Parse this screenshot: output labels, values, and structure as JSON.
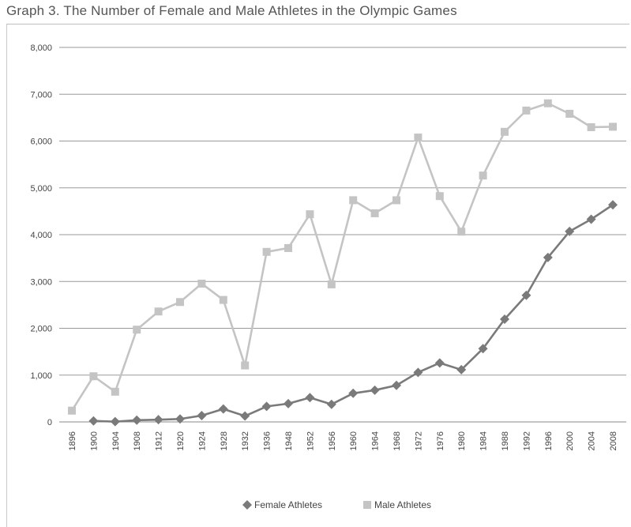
{
  "chart_data": {
    "type": "line",
    "title": "Graph 3. The Number of Female and Male Athletes in the Olympic Games",
    "xlabel": "",
    "ylabel": "",
    "ylim": [
      0,
      8000
    ],
    "y_ticks": [
      {
        "value": 0,
        "label": "0"
      },
      {
        "value": 1000,
        "label": "1,000"
      },
      {
        "value": 2000,
        "label": "2,000"
      },
      {
        "value": 3000,
        "label": "3,000"
      },
      {
        "value": 4000,
        "label": "4,000"
      },
      {
        "value": 5000,
        "label": "5,000"
      },
      {
        "value": 6000,
        "label": "6,000"
      },
      {
        "value": 7000,
        "label": "7,000"
      },
      {
        "value": 8000,
        "label": "8,000"
      }
    ],
    "grid": true,
    "legend_position": "bottom",
    "categories": [
      "1896",
      "1900",
      "1904",
      "1908",
      "1912",
      "1920",
      "1924",
      "1928",
      "1932",
      "1936",
      "1948",
      "1952",
      "1956",
      "1960",
      "1964",
      "1968",
      "1972",
      "1976",
      "1980",
      "1984",
      "1988",
      "1992",
      "1996",
      "2000",
      "2004",
      "2008"
    ],
    "series": [
      {
        "name": "Female Athletes",
        "marker": "diamond",
        "color": "#7a7a7a",
        "values": [
          null,
          22,
          6,
          37,
          48,
          63,
          135,
          277,
          126,
          331,
          390,
          519,
          376,
          611,
          678,
          781,
          1058,
          1260,
          1115,
          1566,
          2194,
          2704,
          3512,
          4069,
          4329,
          4637
        ]
      },
      {
        "name": "Male Athletes",
        "marker": "square",
        "color": "#c4c4c4",
        "values": [
          241,
          975,
          645,
          1971,
          2359,
          2561,
          2954,
          2606,
          1206,
          3632,
          3714,
          4436,
          2938,
          4736,
          4457,
          4735,
          6075,
          4824,
          4064,
          5263,
          6197,
          6652,
          6806,
          6582,
          6296,
          6305
        ]
      }
    ]
  }
}
